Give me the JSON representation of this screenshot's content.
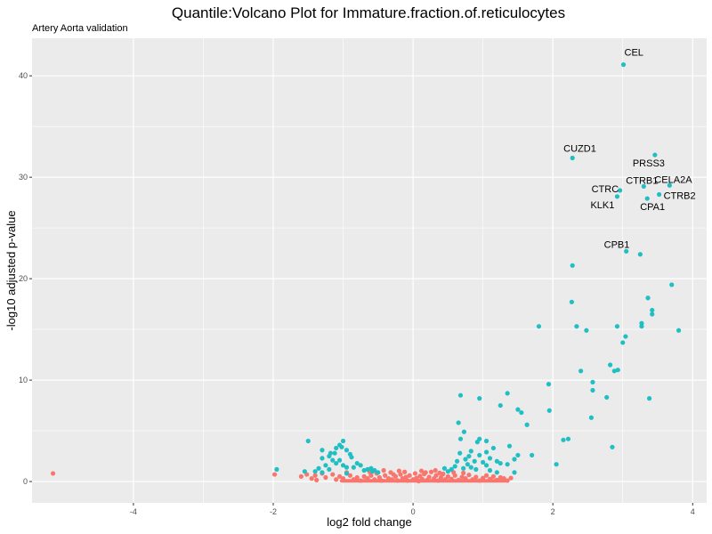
{
  "chart_data": {
    "type": "scatter",
    "title": "Quantile:Volcano Plot for Immature.fraction.of.reticulocytes",
    "subtitle": "Artery Aorta validation",
    "xlabel": "log2 fold change",
    "ylabel": "-log10 adjusted p-value",
    "xlim": [
      -5.45,
      4.2
    ],
    "ylim": [
      -2.1,
      43.7
    ],
    "xticks": [
      -4,
      -2,
      0,
      2,
      4
    ],
    "yticks": [
      0,
      10,
      20,
      30,
      40
    ],
    "grid": true,
    "legend": "none",
    "colors": {
      "significant": "#1fbfc3",
      "not_significant": "#f8766d",
      "panel": "#ebebeb",
      "grid": "#ffffff"
    },
    "labeled_points": [
      {
        "label": "CEL",
        "x": 3.01,
        "y": 41.1
      },
      {
        "label": "PRSS3",
        "x": 3.46,
        "y": 32.2
      },
      {
        "label": "CUZD1",
        "x": 2.28,
        "y": 31.9
      },
      {
        "label": "CTRB1",
        "x": 3.3,
        "y": 29.1
      },
      {
        "label": "CELA2A",
        "x": 3.67,
        "y": 29.2
      },
      {
        "label": "CTRC",
        "x": 2.96,
        "y": 28.7
      },
      {
        "label": "KLK1",
        "x": 2.92,
        "y": 28.1
      },
      {
        "label": "CTRB2",
        "x": 3.52,
        "y": 28.3
      },
      {
        "label": "CPA1",
        "x": 3.35,
        "y": 27.9
      },
      {
        "label": "CPB1",
        "x": 3.05,
        "y": 22.7
      }
    ],
    "significant_points": [
      [
        3.25,
        22.4
      ],
      [
        2.28,
        21.3
      ],
      [
        3.7,
        19.4
      ],
      [
        3.36,
        18.1
      ],
      [
        3.42,
        16.9
      ],
      [
        3.42,
        16.5
      ],
      [
        2.27,
        17.7
      ],
      [
        3.27,
        15.6
      ],
      [
        3.27,
        15.3
      ],
      [
        2.92,
        15.3
      ],
      [
        2.34,
        15.3
      ],
      [
        1.8,
        15.3
      ],
      [
        2.48,
        14.9
      ],
      [
        3.8,
        14.9
      ],
      [
        3.04,
        14.3
      ],
      [
        3.0,
        13.7
      ],
      [
        2.82,
        11.5
      ],
      [
        2.88,
        10.9
      ],
      [
        2.93,
        11.0
      ],
      [
        2.4,
        10.9
      ],
      [
        2.57,
        9.8
      ],
      [
        2.57,
        9.0
      ],
      [
        2.77,
        8.3
      ],
      [
        3.38,
        8.2
      ],
      [
        1.35,
        8.7
      ],
      [
        0.68,
        8.5
      ],
      [
        0.95,
        8.2
      ],
      [
        1.94,
        9.6
      ],
      [
        1.95,
        7.0
      ],
      [
        2.55,
        6.3
      ],
      [
        1.25,
        7.5
      ],
      [
        1.5,
        7.1
      ],
      [
        1.55,
        6.8
      ],
      [
        1.63,
        5.6
      ],
      [
        0.65,
        5.8
      ],
      [
        0.73,
        4.9
      ],
      [
        0.68,
        4.2
      ],
      [
        0.95,
        4.2
      ],
      [
        1.05,
        4.0
      ],
      [
        0.92,
        3.9
      ],
      [
        2.15,
        4.1
      ],
      [
        2.22,
        4.2
      ],
      [
        2.85,
        3.4
      ],
      [
        1.15,
        3.3
      ],
      [
        0.83,
        3.0
      ],
      [
        0.8,
        2.5
      ],
      [
        0.75,
        2.2
      ],
      [
        0.88,
        2.0
      ],
      [
        1.1,
        2.3
      ],
      [
        1.2,
        2.0
      ],
      [
        1.5,
        2.6
      ],
      [
        1.25,
        1.8
      ],
      [
        1.05,
        1.6
      ],
      [
        1.0,
        1.9
      ],
      [
        0.95,
        2.6
      ],
      [
        1.05,
        2.9
      ],
      [
        0.55,
        1.2
      ],
      [
        0.6,
        1.5
      ],
      [
        0.63,
        2.0
      ],
      [
        0.67,
        2.8
      ],
      [
        0.72,
        1.3
      ],
      [
        0.5,
        1.0
      ],
      [
        0.45,
        1.3
      ],
      [
        0.83,
        1.4
      ],
      [
        0.9,
        1.2
      ],
      [
        1.45,
        2.2
      ],
      [
        1.35,
        1.7
      ],
      [
        1.7,
        2.6
      ],
      [
        1.38,
        3.5
      ],
      [
        1.45,
        0.9
      ],
      [
        2.05,
        1.7
      ],
      [
        1.2,
        0.9
      ],
      [
        1.1,
        1.1
      ],
      [
        0.78,
        1.7
      ],
      [
        -1.5,
        4.0
      ],
      [
        -1.0,
        4.0
      ],
      [
        -1.05,
        3.6
      ],
      [
        -1.1,
        3.3
      ],
      [
        -1.3,
        3.1
      ],
      [
        -1.2,
        2.5
      ],
      [
        -1.3,
        2.3
      ],
      [
        -1.15,
        2.1
      ],
      [
        -1.05,
        2.1
      ],
      [
        -0.95,
        3.1
      ],
      [
        -0.9,
        2.7
      ],
      [
        -0.88,
        2.4
      ],
      [
        -1.0,
        1.6
      ],
      [
        -1.1,
        1.8
      ],
      [
        -1.25,
        1.6
      ],
      [
        -1.35,
        1.3
      ],
      [
        -1.4,
        1.0
      ],
      [
        -1.55,
        1.0
      ],
      [
        -1.95,
        1.2
      ],
      [
        -1.2,
        1.2
      ],
      [
        -0.95,
        1.4
      ],
      [
        -0.8,
        1.8
      ],
      [
        -0.85,
        1.4
      ],
      [
        -0.7,
        1.1
      ],
      [
        -0.75,
        1.6
      ],
      [
        -0.6,
        1.3
      ],
      [
        -0.55,
        1.1
      ],
      [
        -0.65,
        1.2
      ],
      [
        -1.18,
        2.8
      ],
      [
        -1.02,
        3.4
      ],
      [
        -1.12,
        2.8
      ],
      [
        -0.5,
        0.9
      ],
      [
        -0.58,
        1.0
      ],
      [
        -1.3,
        0.9
      ],
      [
        -0.95,
        0.8
      ]
    ],
    "nonsignificant_points": [
      [
        -5.15,
        0.8
      ],
      [
        -1.98,
        0.7
      ],
      [
        -1.6,
        0.5
      ],
      [
        -1.45,
        0.3
      ],
      [
        -1.4,
        0.6
      ],
      [
        -1.38,
        0.15
      ],
      [
        -1.25,
        0.4
      ],
      [
        -1.15,
        0.7
      ],
      [
        -1.1,
        0.2
      ],
      [
        -1.05,
        0.5
      ],
      [
        -1.0,
        0.3
      ],
      [
        -0.9,
        0.6
      ],
      [
        -0.85,
        0.2
      ],
      [
        -0.8,
        0.4
      ],
      [
        -0.75,
        0.1
      ],
      [
        -0.7,
        0.5
      ],
      [
        -0.65,
        0.3
      ],
      [
        -0.6,
        0.6
      ],
      [
        -0.55,
        0.2
      ],
      [
        -0.52,
        0.8
      ],
      [
        -0.48,
        0.4
      ],
      [
        -0.45,
        0.1
      ],
      [
        -0.4,
        0.6
      ],
      [
        -0.35,
        0.3
      ],
      [
        -0.32,
        0.9
      ],
      [
        -0.3,
        0.2
      ],
      [
        -0.25,
        0.5
      ],
      [
        -0.22,
        0.1
      ],
      [
        -0.18,
        0.7
      ],
      [
        -0.15,
        0.3
      ],
      [
        -0.1,
        0.45
      ],
      [
        -0.08,
        0.1
      ],
      [
        -0.05,
        0.6
      ],
      [
        0.0,
        0.2
      ],
      [
        0.03,
        0.8
      ],
      [
        0.05,
        0.35
      ],
      [
        0.08,
        0.05
      ],
      [
        0.1,
        0.55
      ],
      [
        0.13,
        0.25
      ],
      [
        0.16,
        0.75
      ],
      [
        0.2,
        0.15
      ],
      [
        0.23,
        0.45
      ],
      [
        0.26,
        0.95
      ],
      [
        0.3,
        0.3
      ],
      [
        0.33,
        0.6
      ],
      [
        0.36,
        0.1
      ],
      [
        0.4,
        0.4
      ],
      [
        0.43,
        0.75
      ],
      [
        0.46,
        0.2
      ],
      [
        0.5,
        0.5
      ],
      [
        0.55,
        0.25
      ],
      [
        0.6,
        0.6
      ],
      [
        0.65,
        0.15
      ],
      [
        0.7,
        0.45
      ],
      [
        0.75,
        0.3
      ],
      [
        0.8,
        0.65
      ],
      [
        0.85,
        0.2
      ],
      [
        0.9,
        0.45
      ],
      [
        0.95,
        0.1
      ],
      [
        1.0,
        0.35
      ],
      [
        1.05,
        0.6
      ],
      [
        1.1,
        0.25
      ],
      [
        1.15,
        0.5
      ],
      [
        1.2,
        0.15
      ],
      [
        1.25,
        0.4
      ],
      [
        1.3,
        0.3
      ],
      [
        1.35,
        0.1
      ],
      [
        1.4,
        0.35
      ],
      [
        -0.95,
        0.9
      ],
      [
        -0.62,
        0.95
      ],
      [
        -0.28,
        0.7
      ],
      [
        -0.12,
        0.95
      ],
      [
        0.18,
        0.9
      ],
      [
        0.38,
        0.85
      ],
      [
        0.58,
        0.9
      ],
      [
        0.72,
        0.85
      ],
      [
        -1.52,
        0.7
      ],
      [
        -1.3,
        0.8
      ],
      [
        -0.42,
        1.1
      ],
      [
        0.32,
        1.1
      ],
      [
        -0.2,
        1.05
      ],
      [
        0.12,
        1.05
      ]
    ]
  }
}
